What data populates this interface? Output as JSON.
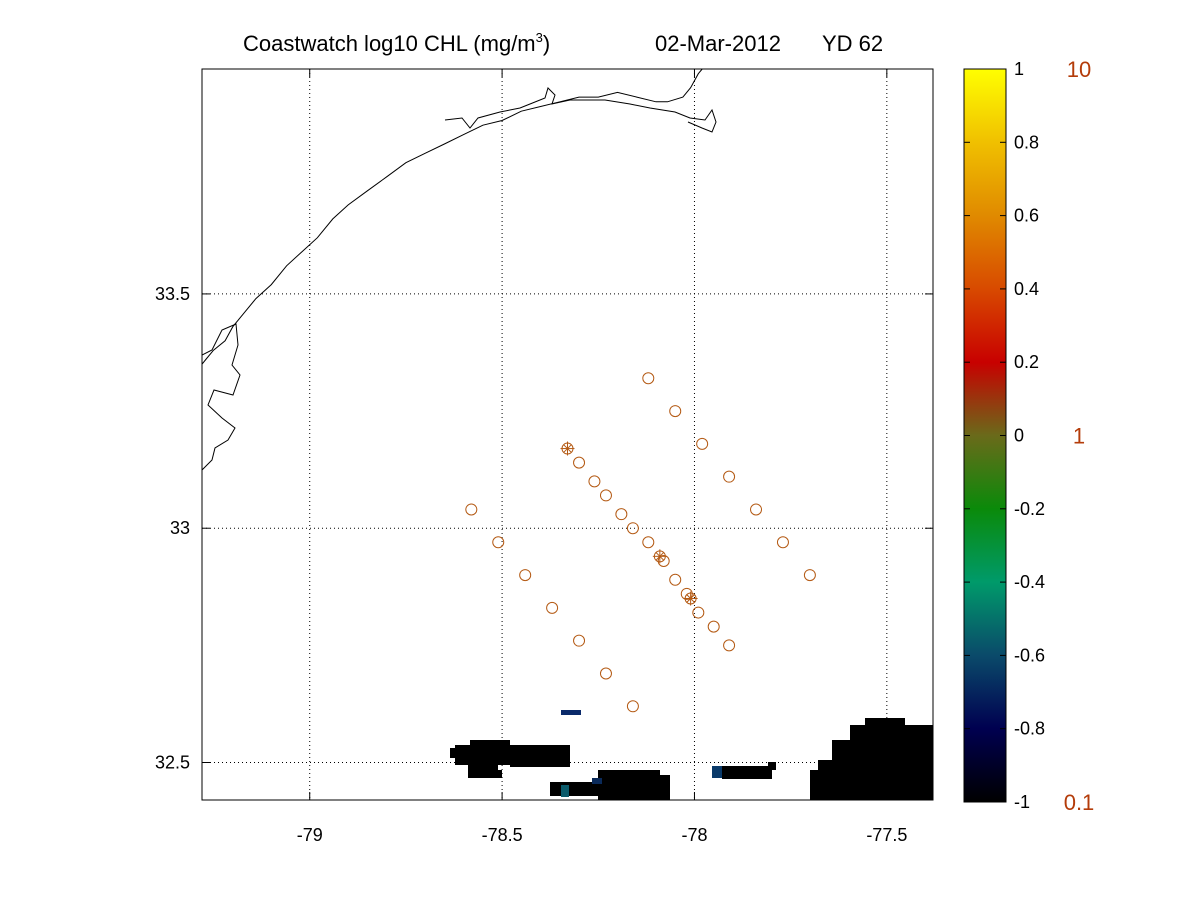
{
  "chart_data": {
    "type": "scatter",
    "title": {
      "prefix": "Coastwatch  log10  CHL (mg/m",
      "superscript": "3",
      "suffix": ")",
      "date": "02-Mar-2012",
      "yearday": "YD 62"
    },
    "xlim": [
      -79.28,
      -77.38
    ],
    "ylim": [
      32.42,
      33.98
    ],
    "x_ticks": [
      {
        "value": -79,
        "label": "-79"
      },
      {
        "value": -78.5,
        "label": "-78.5"
      },
      {
        "value": -78,
        "label": "-78"
      },
      {
        "value": -77.5,
        "label": "-77.5"
      }
    ],
    "y_ticks": [
      {
        "value": 32.5,
        "label": "32.5"
      },
      {
        "value": 33,
        "label": "33"
      },
      {
        "value": 33.5,
        "label": "33.5"
      }
    ],
    "grid": true,
    "coastline": [
      [
        -79.28,
        33.35
      ],
      [
        -79.27,
        33.36
      ],
      [
        -79.25,
        33.38
      ],
      [
        -79.22,
        33.4
      ],
      [
        -79.2,
        33.43
      ],
      [
        -79.17,
        33.46
      ],
      [
        -79.14,
        33.49
      ],
      [
        -79.1,
        33.52
      ],
      [
        -79.06,
        33.56
      ],
      [
        -79.02,
        33.59
      ],
      [
        -78.98,
        33.62
      ],
      [
        -78.94,
        33.66
      ],
      [
        -78.9,
        33.69
      ],
      [
        -78.85,
        33.72
      ],
      [
        -78.8,
        33.75
      ],
      [
        -78.75,
        33.78
      ],
      [
        -78.7,
        33.8
      ],
      [
        -78.65,
        33.82
      ],
      [
        -78.6,
        33.84
      ],
      [
        -78.55,
        33.86
      ],
      [
        -78.5,
        33.87
      ],
      [
        -78.45,
        33.89
      ],
      [
        -78.4,
        33.9
      ],
      [
        -78.35,
        33.91
      ],
      [
        -78.3,
        33.92
      ],
      [
        -78.25,
        33.92
      ],
      [
        -78.2,
        33.93
      ],
      [
        -78.15,
        33.92
      ],
      [
        -78.1,
        33.91
      ],
      [
        -78.07,
        33.91
      ],
      [
        -78.03,
        33.92
      ],
      [
        -78.01,
        33.94
      ],
      [
        -77.99,
        33.97
      ],
      [
        -77.98,
        33.98
      ]
    ],
    "series": [
      {
        "marker": "circle",
        "color": "#b45a14",
        "points": [
          [
            -78.58,
            33.04
          ],
          [
            -78.51,
            32.97
          ],
          [
            -78.44,
            32.9
          ],
          [
            -78.37,
            32.83
          ],
          [
            -78.3,
            32.76
          ],
          [
            -78.23,
            32.69
          ],
          [
            -78.16,
            32.62
          ],
          [
            -78.33,
            33.17
          ],
          [
            -78.3,
            33.14
          ],
          [
            -78.26,
            33.1
          ],
          [
            -78.23,
            33.07
          ],
          [
            -78.19,
            33.03
          ],
          [
            -78.16,
            33.0
          ],
          [
            -78.12,
            32.97
          ],
          [
            -78.09,
            32.94
          ],
          [
            -78.08,
            32.93
          ],
          [
            -78.05,
            32.89
          ],
          [
            -78.02,
            32.86
          ],
          [
            -78.01,
            32.85
          ],
          [
            -77.99,
            32.82
          ],
          [
            -77.95,
            32.79
          ],
          [
            -77.91,
            32.75
          ],
          [
            -78.12,
            33.32
          ],
          [
            -78.05,
            33.25
          ],
          [
            -77.98,
            33.18
          ],
          [
            -77.91,
            33.11
          ],
          [
            -77.84,
            33.04
          ],
          [
            -77.77,
            32.97
          ],
          [
            -77.7,
            32.9
          ]
        ]
      },
      {
        "marker": "plus",
        "color": "#b45a14",
        "points": [
          [
            -78.33,
            33.17
          ],
          [
            -78.09,
            32.94
          ],
          [
            -78.01,
            32.85
          ]
        ]
      }
    ],
    "colorbar": {
      "range": [
        -1,
        1
      ],
      "ticks": [
        {
          "value": 1,
          "label": "1"
        },
        {
          "value": 0.8,
          "label": "0.8"
        },
        {
          "value": 0.6,
          "label": "0.6"
        },
        {
          "value": 0.4,
          "label": "0.4"
        },
        {
          "value": 0.2,
          "label": "0.2"
        },
        {
          "value": 0,
          "label": "0"
        },
        {
          "value": -0.2,
          "label": "-0.2"
        },
        {
          "value": -0.4,
          "label": "-0.4"
        },
        {
          "value": -0.6,
          "label": "-0.6"
        },
        {
          "value": -0.8,
          "label": "-0.8"
        },
        {
          "value": -1,
          "label": "-1"
        }
      ],
      "right_labels": [
        {
          "value": 1,
          "label": "10"
        },
        {
          "value": 0,
          "label": "1"
        },
        {
          "value": -1,
          "label": "0.1"
        }
      ],
      "right_label_color": "#b43c0a",
      "stops": [
        "#000000",
        "#000050",
        "#0a4a6a",
        "#009a6a",
        "#0a8a0a",
        "#6a6a1a",
        "#c80000",
        "#d84a00",
        "#e08a00",
        "#f0c000",
        "#ffff00"
      ]
    }
  }
}
